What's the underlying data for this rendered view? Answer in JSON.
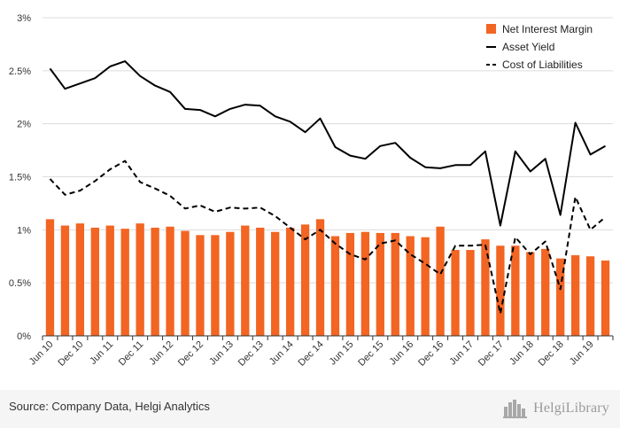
{
  "chart_data": {
    "type": "bar",
    "title": "",
    "xlabel": "",
    "ylabel": "",
    "ylim": [
      0,
      3
    ],
    "yticks": [
      0,
      0.5,
      1,
      1.5,
      2,
      2.5,
      3
    ],
    "ytick_labels": [
      "0%",
      "0.5%",
      "1%",
      "1.5%",
      "2%",
      "2.5%",
      "3%"
    ],
    "grid": true,
    "legend_position": "top-right",
    "categories": [
      "Jun 10",
      "Sep 10",
      "Dec 10",
      "Mar 11",
      "Jun 11",
      "Sep 11",
      "Dec 11",
      "Mar 12",
      "Jun 12",
      "Sep 12",
      "Dec 12",
      "Mar 13",
      "Jun 13",
      "Sep 13",
      "Dec 13",
      "Mar 14",
      "Jun 14",
      "Sep 14",
      "Dec 14",
      "Mar 15",
      "Jun 15",
      "Sep 15",
      "Dec 15",
      "Mar 16",
      "Jun 16",
      "Sep 16",
      "Dec 16",
      "Mar 17",
      "Jun 17",
      "Sep 17",
      "Dec 17",
      "Mar 18",
      "Jun 18",
      "Sep 18",
      "Dec 18",
      "Mar 19",
      "Jun 19",
      "Sep 19"
    ],
    "xtick_labels": [
      "Jun 10",
      "Dec 10",
      "Jun 11",
      "Dec 11",
      "Jun 12",
      "Dec 12",
      "Jun 13",
      "Dec 13",
      "Jun 14",
      "Dec 14",
      "Jun 15",
      "Dec 15",
      "Jun 16",
      "Dec 16",
      "Jun 17",
      "Dec 17",
      "Jun 18",
      "Dec 18",
      "Jun 19"
    ],
    "series": [
      {
        "name": "Net Interest Margin",
        "type": "bar",
        "color": "#f26522",
        "values": [
          1.1,
          1.04,
          1.06,
          1.02,
          1.04,
          1.01,
          1.06,
          1.02,
          1.03,
          0.99,
          0.95,
          0.95,
          0.98,
          1.04,
          1.02,
          0.98,
          1.02,
          1.05,
          1.1,
          0.94,
          0.97,
          0.98,
          0.97,
          0.97,
          0.94,
          0.93,
          1.03,
          0.81,
          0.81,
          0.91,
          0.85,
          0.85,
          0.79,
          0.82,
          0.73,
          0.76,
          0.75,
          0.71
        ]
      },
      {
        "name": "Asset Yield",
        "type": "line",
        "color": "#000000",
        "dash": "solid",
        "values": [
          2.52,
          2.33,
          2.38,
          2.43,
          2.54,
          2.59,
          2.45,
          2.36,
          2.3,
          2.14,
          2.13,
          2.07,
          2.14,
          2.18,
          2.17,
          2.07,
          2.02,
          1.92,
          2.05,
          1.78,
          1.7,
          1.67,
          1.79,
          1.82,
          1.68,
          1.59,
          1.58,
          1.61,
          1.61,
          1.74,
          1.04,
          1.74,
          1.55,
          1.67,
          1.14,
          2.01,
          1.71,
          1.79
        ]
      },
      {
        "name": "Cost of Liabilities",
        "type": "line",
        "color": "#000000",
        "dash": "dashed",
        "values": [
          1.48,
          1.33,
          1.37,
          1.46,
          1.57,
          1.65,
          1.45,
          1.39,
          1.32,
          1.2,
          1.23,
          1.17,
          1.21,
          1.2,
          1.21,
          1.13,
          1.02,
          0.91,
          1.0,
          0.87,
          0.77,
          0.72,
          0.87,
          0.9,
          0.77,
          0.68,
          0.58,
          0.85,
          0.85,
          0.86,
          0.21,
          0.93,
          0.77,
          0.89,
          0.44,
          1.31,
          1.0,
          1.12
        ]
      }
    ]
  },
  "footer": {
    "source": "Source: Company Data, Helgi Analytics",
    "logo_text": "HelgiLibrary",
    "logo_icon": "city-skyline-icon"
  }
}
